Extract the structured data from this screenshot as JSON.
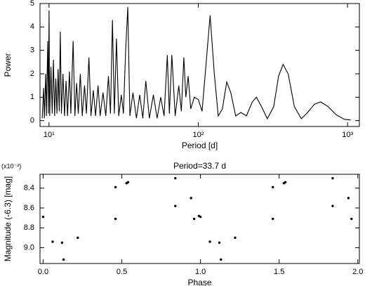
{
  "chart_data": [
    {
      "type": "line",
      "xlabel": "Period [d]",
      "ylabel": "Power",
      "xscale": "log",
      "xlim": [
        8.7,
        1200
      ],
      "ylim": [
        -0.25,
        5
      ],
      "xticks": [
        {
          "value": 10,
          "label": "10¹"
        },
        {
          "value": 100,
          "label": "10²"
        },
        {
          "value": 1000,
          "label": "10³"
        }
      ],
      "yticks": [
        0,
        1,
        2,
        3,
        4,
        5
      ],
      "series": [
        {
          "color": "#000000",
          "x": [
            9.0,
            9.2,
            9.3,
            9.5,
            9.6,
            9.8,
            9.9,
            10.0,
            10.1,
            10.3,
            10.5,
            10.7,
            10.9,
            11.1,
            11.3,
            11.5,
            11.7,
            11.9,
            12.1,
            12.4,
            12.7,
            13.0,
            13.3,
            13.7,
            14.0,
            14.5,
            14.9,
            15.3,
            15.7,
            16.2,
            16.7,
            17.3,
            17.8,
            18.5,
            19.1,
            19.8,
            20.5,
            21.3,
            22.0,
            23.0,
            24.0,
            25.0,
            25.8,
            26.6,
            27.4,
            28.3,
            29.3,
            30.5,
            31.5,
            32.6,
            33.7,
            34.8,
            36.5,
            38.5,
            40.5,
            42.5,
            44.5,
            47.0,
            50.0,
            53.0,
            56.0,
            59.0,
            62.0,
            64.0,
            66.5,
            70.0,
            74.0,
            77.0,
            80.0,
            82.5,
            85.5,
            89.0,
            94.0,
            100.0,
            106.0,
            113.0,
            120.0,
            128.0,
            136.0,
            145.0,
            155.0,
            165.0,
            178.0,
            193.0,
            210.0,
            230.0,
            245.0,
            265.0,
            290.0,
            320.0,
            345.0,
            370.0,
            400.0,
            440.0,
            490.0,
            540.0,
            600.0,
            660.0,
            740.0,
            840.0,
            950.0,
            1050.0
          ],
          "values": [
            0.1,
            1.4,
            0.1,
            2.0,
            0.2,
            3.4,
            0.3,
            4.7,
            0.2,
            2.3,
            0.3,
            2.6,
            0.2,
            1.8,
            0.3,
            2.2,
            0.4,
            3.8,
            0.3,
            2.0,
            0.2,
            1.7,
            0.2,
            2.1,
            0.3,
            3.4,
            0.2,
            1.6,
            0.3,
            2.0,
            0.2,
            1.5,
            0.3,
            2.7,
            0.2,
            1.3,
            0.2,
            1.5,
            0.2,
            1.2,
            0.2,
            1.9,
            0.3,
            4.3,
            0.3,
            3.5,
            0.2,
            1.1,
            0.3,
            3.0,
            4.85,
            0.2,
            1.2,
            0.1,
            1.1,
            0.1,
            1.7,
            0.1,
            1.1,
            0.1,
            1.0,
            0.2,
            2.8,
            0.3,
            2.8,
            0.2,
            1.5,
            0.4,
            2.7,
            1.0,
            1.9,
            0.5,
            1.0,
            0.9,
            0.4,
            2.5,
            4.5,
            2.0,
            0.2,
            0.5,
            1.65,
            1.2,
            0.2,
            0.35,
            0.2,
            0.8,
            1.0,
            0.6,
            0.08,
            0.6,
            1.9,
            2.4,
            2.0,
            0.6,
            0.08,
            0.35,
            0.7,
            0.8,
            0.6,
            0.25,
            0.06,
            0.03
          ]
        }
      ]
    },
    {
      "type": "scatter",
      "title": "Period=33.7 d",
      "xlabel": "Phase",
      "ylabel": "Magnitude (-6.3) [mag]",
      "y_exponent": "(x10⁻²)",
      "xlim": [
        -0.02,
        2.01
      ],
      "ylim": [
        9.16,
        8.26
      ],
      "xticks": [
        {
          "value": 0,
          "label": "0.0"
        },
        0.5,
        {
          "value": 1,
          "label": "1.0"
        },
        1.5,
        {
          "value": 2,
          "label": "2.0"
        }
      ],
      "yticks": [
        8.4,
        8.6,
        8.8,
        {
          "value": 9,
          "label": "9.0"
        }
      ],
      "series": [
        {
          "color": "#000000",
          "x": [
            0.0,
            0.06,
            0.12,
            0.13,
            0.22,
            0.46,
            0.46,
            0.53,
            0.54,
            0.84,
            0.84,
            0.94,
            0.96,
            0.99,
            1.0,
            1.06,
            1.12,
            1.13,
            1.22,
            1.46,
            1.46,
            1.53,
            1.54,
            1.84,
            1.84,
            1.94,
            1.96
          ],
          "values": [
            8.69,
            8.94,
            8.95,
            9.12,
            8.9,
            8.39,
            8.71,
            8.35,
            8.34,
            8.3,
            8.58,
            8.5,
            8.71,
            8.68,
            8.69,
            8.94,
            8.95,
            9.12,
            8.9,
            8.39,
            8.71,
            8.35,
            8.34,
            8.3,
            8.58,
            8.5,
            8.71
          ]
        }
      ]
    }
  ]
}
